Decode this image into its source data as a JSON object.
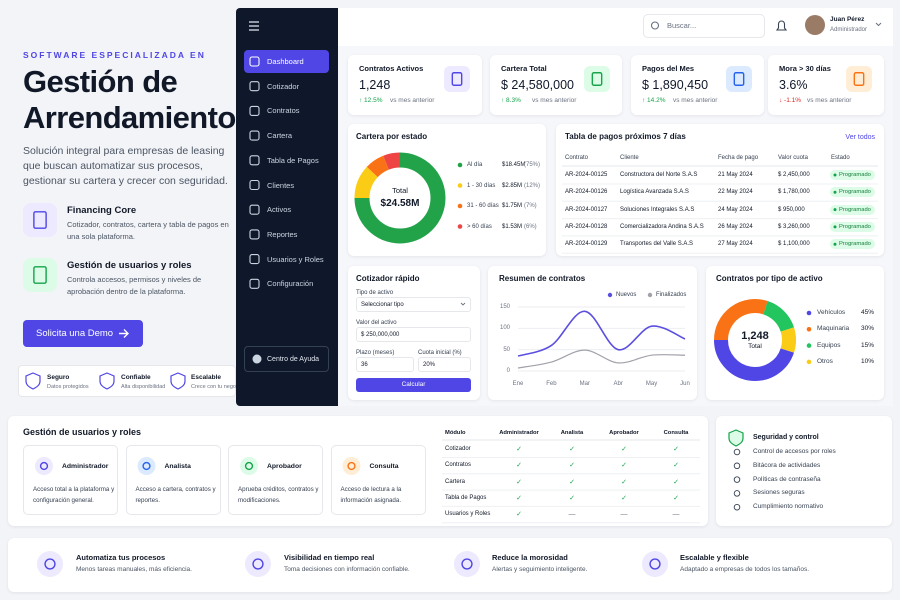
{
  "hero": {
    "eyebrow": "SOFTWARE ESPECIALIZADA EN",
    "title": "Gestión de Arrendamiento",
    "description": "Solución integral para empresas de leasing que buscan automatizar sus procesos, gestionar su cartera y crecer con seguridad.",
    "features": [
      {
        "title": "Financing Core",
        "text": "Cotizador, contratos, cartera y tabla de pagos en una sola plataforma."
      },
      {
        "title": "Gestión de usuarios y roles",
        "text": "Controla accesos, permisos y niveles de aprobación dentro de la plataforma."
      }
    ],
    "cta": "Solicita una Demo",
    "badges": [
      {
        "title": "Seguro",
        "text": "Datos protegidos"
      },
      {
        "title": "Confiable",
        "text": "Alta disponibilidad"
      },
      {
        "title": "Escalable",
        "text": "Crece con tu negocio"
      }
    ]
  },
  "sidebar": {
    "items": [
      "Dashboard",
      "Cotizador",
      "Contratos",
      "Cartera",
      "Tabla de Pagos",
      "Clientes",
      "Activos",
      "Reportes",
      "Usuarios y Roles",
      "Configuración"
    ],
    "help": "Centro de Ayuda"
  },
  "topbar": {
    "search": "Buscar...",
    "user_name": "Juan Pérez",
    "user_role": "Administrador"
  },
  "kpis": [
    {
      "label": "Contratos Activos",
      "value": "1,248",
      "change": "↑ 12.5%",
      "note": "vs mes anterior"
    },
    {
      "label": "Cartera Total",
      "value": "$ 24,580,000",
      "change": "↑ 8.3%",
      "note": "vs mes anterior"
    },
    {
      "label": "Pagos del Mes",
      "value": "$ 1,890,450",
      "change": "↑ 14.2%",
      "note": "vs mes anterior"
    },
    {
      "label": "Mora > 30 días",
      "value": "3.6%",
      "change": "↓ -1.1%",
      "note": "vs mes anterior"
    }
  ],
  "chart_data": [
    {
      "type": "pie",
      "title": "Cartera por estado",
      "center_label": "Total",
      "center_value": "$24.58M",
      "categories": [
        "Al día",
        "1 - 30 días",
        "31 - 60 días",
        "> 60 días"
      ],
      "amounts": [
        "$18.45M",
        "$2.85M",
        "$1.75M",
        "$1.53M"
      ],
      "values": [
        75,
        12,
        7,
        6
      ],
      "value_labels": [
        "(75%)",
        "(12%)",
        "(7%)",
        "(6%)"
      ],
      "colors": [
        "#22a34a",
        "#facc15",
        "#f97316",
        "#ef4444"
      ]
    },
    {
      "type": "line",
      "title": "Resumen de contratos",
      "categories": [
        "Ene",
        "Feb",
        "Mar",
        "Abr",
        "May",
        "Jun"
      ],
      "series": [
        {
          "name": "Nuevos",
          "color": "#5b4fe0",
          "values": [
            35,
            60,
            140,
            50,
            105,
            75
          ]
        },
        {
          "name": "Finalizados",
          "color": "#a1a1aa",
          "values": [
            7,
            21,
            49,
            19,
            37,
            37
          ]
        }
      ],
      "ylim": [
        0,
        150
      ],
      "yticks": [
        0,
        50,
        100,
        150
      ],
      "grid": true
    },
    {
      "type": "pie",
      "title": "Contratos por tipo de activo",
      "center_value": "1,248",
      "center_label": "Total",
      "categories": [
        "Vehículos",
        "Maquinaria",
        "Equipos",
        "Otros"
      ],
      "values": [
        45,
        30,
        15,
        10
      ],
      "value_labels": [
        "45%",
        "30%",
        "15%",
        "10%"
      ],
      "colors": [
        "#4f46e5",
        "#f97316",
        "#22c55e",
        "#facc15"
      ]
    }
  ],
  "payments": {
    "title": "Tabla de pagos próximos 7 días",
    "link": "Ver todos",
    "columns": [
      "Contrato",
      "Cliente",
      "Fecha de pago",
      "Valor cuota",
      "Estado"
    ],
    "rows": [
      [
        "AR-2024-00125",
        "Constructora del Norte S.A.S",
        "21 May 2024",
        "$ 2,450,000",
        "Programado"
      ],
      [
        "AR-2024-00126",
        "Logística Avanzada S.A.S",
        "22 May 2024",
        "$ 1,780,000",
        "Programado"
      ],
      [
        "AR-2024-00127",
        "Soluciones Integrales S.A.S",
        "24 May 2024",
        "$ 950,000",
        "Programado"
      ],
      [
        "AR-2024-00128",
        "Comercializadora Andina S.A.S",
        "26 May 2024",
        "$ 3,260,000",
        "Programado"
      ],
      [
        "AR-2024-00129",
        "Transportes del Valle S.A.S",
        "27 May 2024",
        "$ 1,100,000",
        "Programado"
      ]
    ]
  },
  "quote": {
    "title": "Cotizador rápido",
    "type_label": "Tipo de activo",
    "type_value": "Seleccionar tipo",
    "asset_label": "Valor del activo",
    "asset_value": "$ 250,000,000",
    "term_label": "Plazo (meses)",
    "term_value": "36",
    "down_label": "Cuota inicial (%)",
    "down_value": "20%",
    "button": "Calcular"
  },
  "roles": {
    "title": "Gestión de usuarios y roles",
    "cards": [
      {
        "title": "Administrador",
        "text": "Acceso total a la plataforma y configuración general."
      },
      {
        "title": "Analista",
        "text": "Acceso a cartera, contratos y reportes."
      },
      {
        "title": "Aprobador",
        "text": "Aprueba créditos, contratos y modificaciones."
      },
      {
        "title": "Consulta",
        "text": "Acceso de lectura a la información asignada."
      }
    ],
    "matrix": {
      "columns": [
        "Módulo",
        "Administrador",
        "Analista",
        "Aprobador",
        "Consulta"
      ],
      "rows": [
        [
          "Cotizador",
          "✓",
          "✓",
          "✓",
          "✓"
        ],
        [
          "Contratos",
          "✓",
          "✓",
          "✓",
          "✓"
        ],
        [
          "Cartera",
          "✓",
          "✓",
          "✓",
          "✓"
        ],
        [
          "Tabla de Pagos",
          "✓",
          "✓",
          "✓",
          "✓"
        ],
        [
          "Usuarios y Roles",
          "✓",
          "—",
          "—",
          "—"
        ]
      ]
    }
  },
  "security": {
    "title": "Seguridad y control",
    "items": [
      "Control de accesos por roles",
      "Bitácora de actividades",
      "Políticas de contraseña",
      "Sesiones seguras",
      "Cumplimiento normativo"
    ]
  },
  "benefits": [
    {
      "title": "Automatiza tus procesos",
      "text": "Menos tareas manuales, más eficiencia."
    },
    {
      "title": "Visibilidad en tiempo real",
      "text": "Toma decisiones con información confiable."
    },
    {
      "title": "Reduce la morosidad",
      "text": "Alertas y seguimiento inteligente."
    },
    {
      "title": "Escalable y flexible",
      "text": "Adaptado a empresas de todos los tamaños."
    }
  ]
}
